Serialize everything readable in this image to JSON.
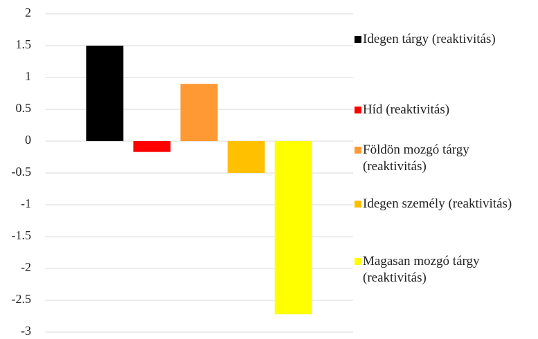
{
  "chart_data": {
    "type": "bar",
    "categories": [
      null
    ],
    "series": [
      {
        "name": "Idegen tárgy (reaktivitás)",
        "color": "#000000",
        "values": [
          1.5
        ]
      },
      {
        "name": "Híd (reaktivitás)",
        "color": "#ff0000",
        "values": [
          -0.17
        ]
      },
      {
        "name": "Földön mozgó tárgy (reaktivitás)",
        "color": "#ff9933",
        "values": [
          0.9
        ]
      },
      {
        "name": "Idegen személy (reaktivitás)",
        "color": "#ffc000",
        "values": [
          -0.5
        ]
      },
      {
        "name": "Magasan mozgó tárgy (reaktivitás)",
        "color": "#ffff00",
        "values": [
          -2.72
        ]
      }
    ],
    "ylim": [
      -3,
      2
    ],
    "yticks": [
      -3,
      -2.5,
      -2,
      -1.5,
      -1,
      -0.5,
      0,
      0.5,
      1,
      1.5,
      2
    ],
    "grid": true,
    "legend": "right"
  }
}
